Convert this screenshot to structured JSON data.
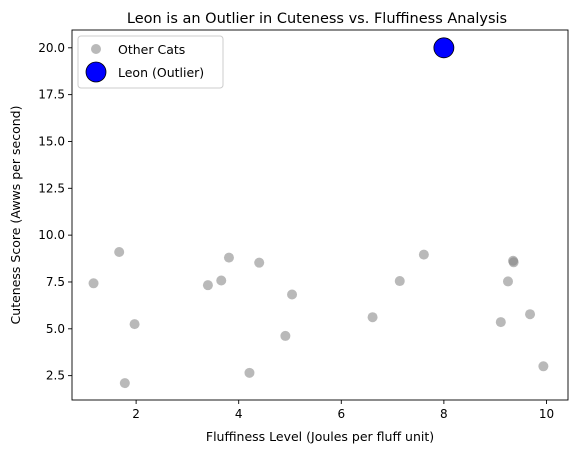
{
  "chart_data": {
    "type": "scatter",
    "title": "Leon is an Outlier in Cuteness vs. Fluffiness Analysis",
    "xlabel": "Fluffiness Level (Joules per fluff unit)",
    "ylabel": "Cuteness Score (Awws per second)",
    "xlim": [
      0.75,
      10.42
    ],
    "ylim": [
      1.2,
      20.95
    ],
    "xticks": [
      2,
      4,
      6,
      8,
      10
    ],
    "xtick_labels": [
      "2",
      "4",
      "6",
      "8",
      "10"
    ],
    "yticks": [
      2.5,
      5.0,
      7.5,
      10.0,
      12.5,
      15.0,
      17.5,
      20.0
    ],
    "ytick_labels": [
      "2.5",
      "5.0",
      "7.5",
      "10.0",
      "12.5",
      "15.0",
      "17.5",
      "20.0"
    ],
    "grid": false,
    "legend_position": "top-left",
    "series": [
      {
        "name": "Other Cats",
        "color": "#808080",
        "marker": "circle",
        "points": [
          {
            "x": 1.17,
            "y": 7.43
          },
          {
            "x": 1.67,
            "y": 9.1
          },
          {
            "x": 1.78,
            "y": 2.1
          },
          {
            "x": 1.97,
            "y": 5.25
          },
          {
            "x": 3.4,
            "y": 7.33
          },
          {
            "x": 3.66,
            "y": 7.58
          },
          {
            "x": 3.81,
            "y": 8.8
          },
          {
            "x": 4.21,
            "y": 2.65
          },
          {
            "x": 4.4,
            "y": 8.53
          },
          {
            "x": 4.91,
            "y": 4.62
          },
          {
            "x": 5.04,
            "y": 6.83
          },
          {
            "x": 6.61,
            "y": 5.62
          },
          {
            "x": 7.14,
            "y": 7.55
          },
          {
            "x": 7.61,
            "y": 8.96
          },
          {
            "x": 9.11,
            "y": 5.36
          },
          {
            "x": 9.25,
            "y": 7.53
          },
          {
            "x": 9.35,
            "y": 8.63
          },
          {
            "x": 9.36,
            "y": 8.55
          },
          {
            "x": 9.68,
            "y": 5.78
          },
          {
            "x": 9.94,
            "y": 3.0
          }
        ]
      },
      {
        "name": "Leon (Outlier)",
        "color": "#0000ff",
        "edgecolor": "#000000",
        "marker": "circle",
        "points": [
          {
            "x": 8.0,
            "y": 20.0
          }
        ]
      }
    ]
  }
}
